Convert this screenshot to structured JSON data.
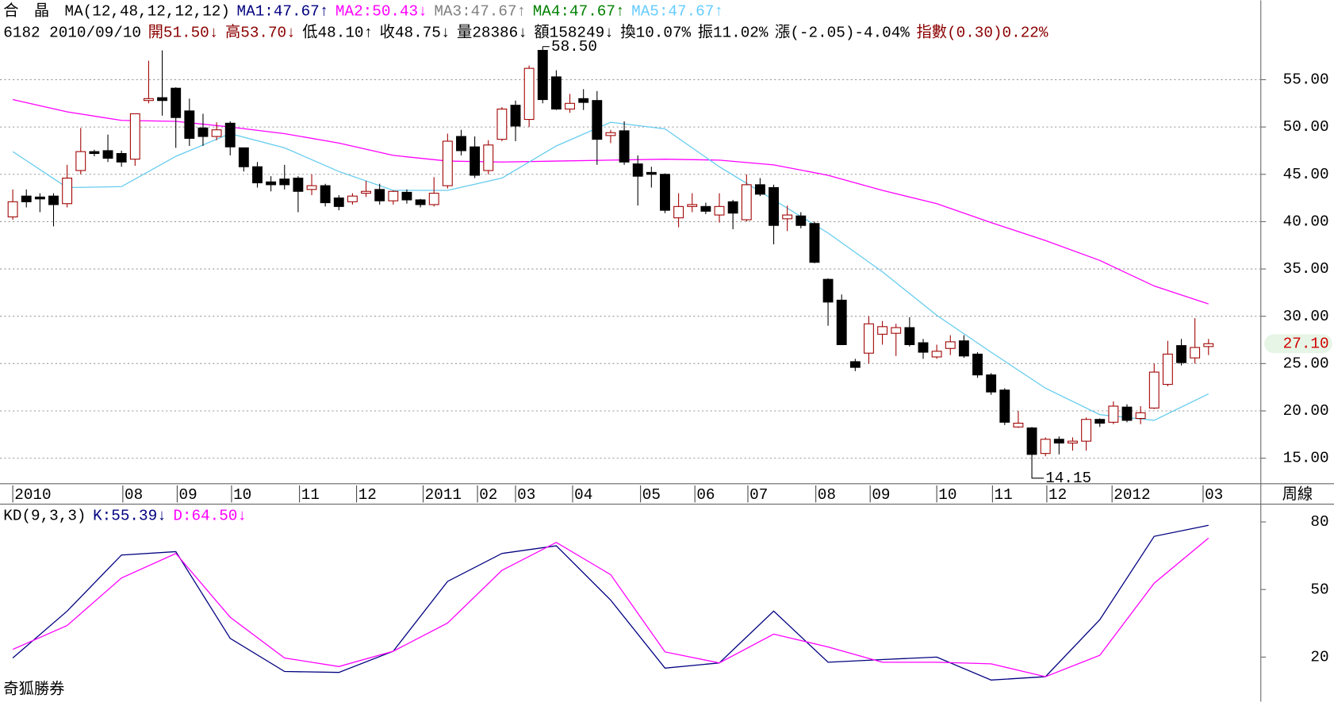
{
  "header": {
    "name": "合　晶",
    "ma_params": "MA(12,48,12,12,12)",
    "ma_values": [
      {
        "text": "MA1:47.67↑",
        "color": "#00007f"
      },
      {
        "text": "MA2:50.43↓",
        "color": "#ff00ff"
      },
      {
        "text": "MA3:47.67↑",
        "color": "#808080"
      },
      {
        "text": "MA4:47.67↑",
        "color": "#008000"
      },
      {
        "text": "MA5:47.67↑",
        "color": "#66ccff"
      }
    ],
    "info": [
      {
        "text": "6182 2010/09/10",
        "color": "#000000"
      },
      {
        "text": "開51.50↓",
        "color": "#8b0000"
      },
      {
        "text": "高53.70↓",
        "color": "#8b0000"
      },
      {
        "text": "低48.10↑",
        "color": "#000000"
      },
      {
        "text": "收48.75↓",
        "color": "#000000"
      },
      {
        "text": "量28386↓",
        "color": "#000000"
      },
      {
        "text": "額158249↓",
        "color": "#000000"
      },
      {
        "text": "換10.07%",
        "color": "#000000"
      },
      {
        "text": "振11.02%",
        "color": "#000000"
      },
      {
        "text": "漲(-2.05)-4.04%",
        "color": "#000000"
      },
      {
        "text": "指數(0.30)0.22%",
        "color": "#8b0000"
      }
    ],
    "footer": "奇狐勝券"
  },
  "chart_data": [
    {
      "type": "candlestick",
      "period_label": "周線",
      "xlim": [
        -0.94,
        91.85
      ],
      "ylim": [
        12.3,
        59.6
      ],
      "yticks": [
        {
          "value": 15,
          "label": "15.00"
        },
        {
          "value": 20,
          "label": "20.00"
        },
        {
          "value": 25,
          "label": "25.00"
        },
        {
          "value": 30,
          "label": "30.00"
        },
        {
          "value": 35,
          "label": "35.00"
        },
        {
          "value": 40,
          "label": "40.00"
        },
        {
          "value": 45,
          "label": "45.00"
        },
        {
          "value": 50,
          "label": "50.00"
        },
        {
          "value": 55,
          "label": "55.00"
        }
      ],
      "xticks": [
        {
          "value": 0,
          "label": "2010"
        },
        {
          "value": 8.1,
          "label": "08"
        },
        {
          "value": 12.1,
          "label": "09"
        },
        {
          "value": 16.1,
          "label": "10"
        },
        {
          "value": 21.1,
          "label": "11"
        },
        {
          "value": 25.3,
          "label": "12"
        },
        {
          "value": 30.2,
          "label": "2011"
        },
        {
          "value": 34.2,
          "label": "02"
        },
        {
          "value": 37.0,
          "label": "03"
        },
        {
          "value": 41.2,
          "label": "04"
        },
        {
          "value": 46.2,
          "label": "05"
        },
        {
          "value": 50.2,
          "label": "06"
        },
        {
          "value": 54.1,
          "label": "07"
        },
        {
          "value": 59.1,
          "label": "08"
        },
        {
          "value": 63.1,
          "label": "09"
        },
        {
          "value": 68.0,
          "label": "10"
        },
        {
          "value": 72.1,
          "label": "11"
        },
        {
          "value": 76.1,
          "label": "12"
        },
        {
          "value": 80.9,
          "label": "2012"
        },
        {
          "value": 87.6,
          "label": "03"
        }
      ],
      "grid": true,
      "up_color": "#a00000",
      "down_color": "#000000",
      "open": [
        40.5,
        42.7,
        42.6,
        42.7,
        41.9,
        45.4,
        47.4,
        47.5,
        47.2,
        46.6,
        52.8,
        53.1,
        54.1,
        51.7,
        49.9,
        49.0,
        50.4,
        47.8,
        45.8,
        44.2,
        44.5,
        44.6,
        43.4,
        43.8,
        42.5,
        42.1,
        43.0,
        43.4,
        42.2,
        43.1,
        42.3,
        41.8,
        43.8,
        49.0,
        47.9,
        45.4,
        48.7,
        52.3,
        50.8,
        58.1,
        55.3,
        51.9,
        53.0,
        52.8,
        49.1,
        49.6,
        46.1,
        45.2,
        45.0,
        40.4,
        41.6,
        41.6,
        40.7,
        42.1,
        40.2,
        43.9,
        43.6,
        40.3,
        40.6,
        39.8,
        33.9,
        31.7,
        25.2,
        26.1,
        28.1,
        28.2,
        28.8,
        27.2,
        25.7,
        26.6,
        27.4,
        26.0,
        23.8,
        22.2,
        18.3,
        18.2,
        15.5,
        17.0,
        16.6,
        16.8,
        19.1,
        18.8,
        20.4,
        19.2,
        20.3,
        22.8,
        26.9,
        25.6,
        26.8
      ],
      "high": [
        43.4,
        43.4,
        43.0,
        43.0,
        46.0,
        49.9,
        47.6,
        49.2,
        47.5,
        51.4,
        57.0,
        58.1,
        54.2,
        53.0,
        51.4,
        50.5,
        50.6,
        47.8,
        46.3,
        44.8,
        46.0,
        44.8,
        45.0,
        44.0,
        42.8,
        43.0,
        44.3,
        44.0,
        43.3,
        43.4,
        42.4,
        44.7,
        49.3,
        49.7,
        49.0,
        48.6,
        52.1,
        52.8,
        56.5,
        58.5,
        56.0,
        53.5,
        54.0,
        53.8,
        49.7,
        50.6,
        47.0,
        45.8,
        45.1,
        43.0,
        43.0,
        42.0,
        43.0,
        42.3,
        45.0,
        44.6,
        43.9,
        41.7,
        41.0,
        40.0,
        34.0,
        32.3,
        25.5,
        30.0,
        29.5,
        29.2,
        29.9,
        27.6,
        27.0,
        28.0,
        28.0,
        26.2,
        24.0,
        22.4,
        20.0,
        18.3,
        17.2,
        17.3,
        17.2,
        19.3,
        19.2,
        21.0,
        20.7,
        20.5,
        25.0,
        27.4,
        27.6,
        29.8,
        27.6
      ],
      "low": [
        40.2,
        41.5,
        41.0,
        39.5,
        41.5,
        45.0,
        46.9,
        46.3,
        45.8,
        45.9,
        52.5,
        51.2,
        47.8,
        48.0,
        48.0,
        48.6,
        47.0,
        45.3,
        43.6,
        43.2,
        43.4,
        41.0,
        42.8,
        41.6,
        41.2,
        41.8,
        42.6,
        41.8,
        41.8,
        41.9,
        41.5,
        41.6,
        43.5,
        47.0,
        44.6,
        45.0,
        48.5,
        48.5,
        50.0,
        52.5,
        51.8,
        51.5,
        51.8,
        46.0,
        48.3,
        46.0,
        41.7,
        43.6,
        40.9,
        39.4,
        41.0,
        40.8,
        39.9,
        39.2,
        40.0,
        42.7,
        37.6,
        39.0,
        39.3,
        35.6,
        29.0,
        27.0,
        24.2,
        25.0,
        27.0,
        25.8,
        26.8,
        25.5,
        25.5,
        25.9,
        25.6,
        23.5,
        21.7,
        18.5,
        18.2,
        14.15,
        15.2,
        15.4,
        15.8,
        15.8,
        18.3,
        18.6,
        18.8,
        18.6,
        20.2,
        22.6,
        24.8,
        25.0,
        25.9
      ],
      "close": [
        42.1,
        42.1,
        42.4,
        41.8,
        44.6,
        47.4,
        47.2,
        46.7,
        46.3,
        51.4,
        53.0,
        52.8,
        51.0,
        48.8,
        49.0,
        49.7,
        47.9,
        45.8,
        44.1,
        43.9,
        43.9,
        43.2,
        43.8,
        42.0,
        41.6,
        42.7,
        43.2,
        42.2,
        43.2,
        42.3,
        41.8,
        43.0,
        48.5,
        47.5,
        44.9,
        48.1,
        51.9,
        50.1,
        56.2,
        52.9,
        51.9,
        52.5,
        52.6,
        48.7,
        49.4,
        46.3,
        44.8,
        45.0,
        41.2,
        41.6,
        41.8,
        41.1,
        41.6,
        40.9,
        43.9,
        42.9,
        39.6,
        40.7,
        39.6,
        35.7,
        31.5,
        27.0,
        24.6,
        29.2,
        28.9,
        28.8,
        27.0,
        26.2,
        26.3,
        27.3,
        25.8,
        23.8,
        22.0,
        18.8,
        18.7,
        15.4,
        17.0,
        16.6,
        16.8,
        19.1,
        18.7,
        20.5,
        19.0,
        19.8,
        24.1,
        26.0,
        25.1,
        26.7,
        27.1
      ],
      "lines": [
        {
          "color": "#ff00ff",
          "x": [
            0,
            4,
            8,
            12,
            16,
            20,
            24,
            28,
            32,
            36,
            40,
            44,
            48,
            52,
            56,
            60,
            64,
            68,
            72,
            76,
            80,
            84,
            88
          ],
          "values": [
            52.9,
            51.6,
            50.7,
            50.6,
            50.0,
            49.3,
            48.3,
            47.0,
            46.4,
            46.3,
            46.4,
            46.5,
            46.6,
            46.5,
            46.0,
            44.9,
            43.3,
            41.9,
            39.9,
            38.0,
            35.9,
            33.2,
            31.3
          ]
        },
        {
          "color": "#66ccee",
          "x": [
            0,
            4,
            8,
            12,
            16,
            20,
            24,
            28,
            32,
            36,
            40,
            44,
            48,
            52,
            56,
            60,
            64,
            68,
            72,
            76,
            80,
            84,
            88
          ],
          "values": [
            47.4,
            43.6,
            43.7,
            46.9,
            49.3,
            47.8,
            45.3,
            43.3,
            43.3,
            44.6,
            48.0,
            50.5,
            49.8,
            45.8,
            42.3,
            38.8,
            34.7,
            30.1,
            26.2,
            22.4,
            19.6,
            19.0,
            21.8
          ]
        }
      ],
      "annotations": [
        {
          "value": 58.5,
          "label": "58.50"
        },
        {
          "value": 14.15,
          "label": "14.15"
        }
      ],
      "last_price": {
        "value": 27.1,
        "label": "27.10"
      }
    },
    {
      "type": "line",
      "title": "KD(9,3,3)",
      "xlim": [
        -0.94,
        91.85
      ],
      "ylim": [
        1,
        86
      ],
      "yticks": [
        20,
        50,
        80
      ],
      "x": [
        0,
        4,
        8,
        12,
        16,
        20,
        24,
        28,
        32,
        36,
        40,
        44,
        48,
        52,
        56,
        60,
        64,
        68,
        72,
        76,
        80,
        84,
        88
      ],
      "series": [
        {
          "name": "K:55.39↓",
          "color": "#000080",
          "values": [
            19.6,
            40.4,
            65.3,
            66.8,
            28.3,
            13.6,
            13.2,
            22.6,
            53.6,
            66.0,
            69.4,
            45.3,
            15.1,
            17.4,
            40.4,
            17.7,
            18.9,
            20.0,
            9.8,
            11.3,
            36.6,
            73.6,
            78.5
          ]
        },
        {
          "name": "D:64.50↓",
          "color": "#ff00ff",
          "values": [
            23.4,
            34.0,
            55.1,
            66.0,
            37.7,
            19.6,
            15.8,
            22.6,
            35.1,
            58.5,
            70.9,
            56.6,
            22.3,
            17.4,
            30.2,
            24.5,
            17.7,
            17.7,
            17.0,
            11.3,
            20.8,
            52.8,
            72.8
          ]
        }
      ]
    }
  ]
}
